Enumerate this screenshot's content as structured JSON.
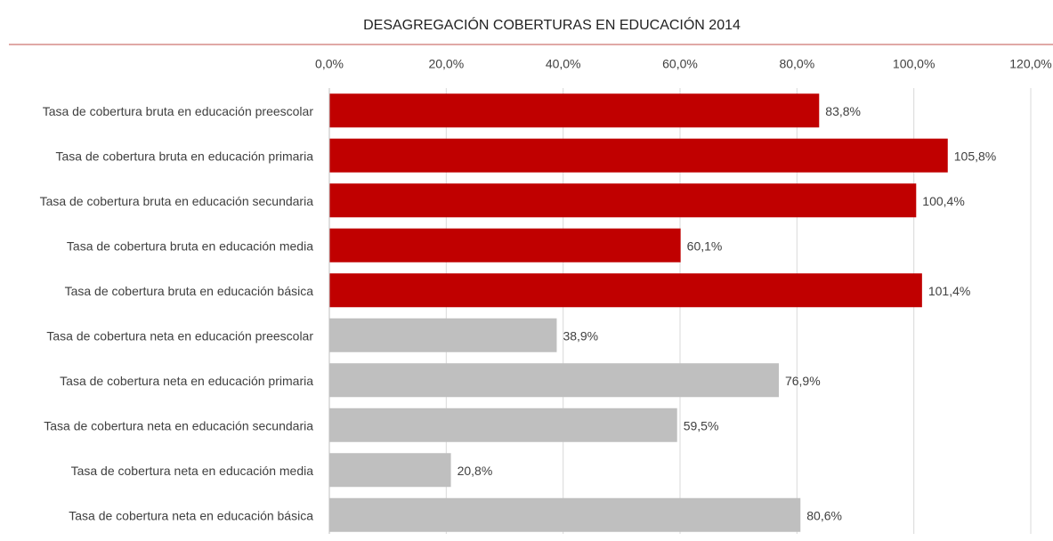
{
  "chart_data": {
    "type": "bar",
    "orientation": "horizontal",
    "title": "DESAGREGACIÓN COBERTURAS EN EDUCACIÓN 2014",
    "categories": [
      "Tasa de cobertura bruta en educación preescolar",
      "Tasa de cobertura bruta en educación primaria",
      "Tasa de cobertura bruta en educación secundaria",
      "Tasa de cobertura bruta en educación media",
      "Tasa de cobertura bruta en educación básica",
      "Tasa de cobertura neta en educación preescolar",
      "Tasa de cobertura neta en educación primaria",
      "Tasa de cobertura neta en educación secundaria",
      "Tasa de cobertura neta en educación media",
      "Tasa de cobertura neta en educación básica"
    ],
    "values": [
      83.8,
      105.8,
      100.4,
      60.1,
      101.4,
      38.9,
      76.9,
      59.5,
      20.8,
      80.6
    ],
    "value_labels": [
      "83,8%",
      "105,8%",
      "100,4%",
      "60,1%",
      "101,4%",
      "38,9%",
      "76,9%",
      "59,5%",
      "20,8%",
      "80,6%"
    ],
    "colors": [
      "#c00000",
      "#c00000",
      "#c00000",
      "#c00000",
      "#c00000",
      "#bfbfbf",
      "#bfbfbf",
      "#bfbfbf",
      "#bfbfbf",
      "#bfbfbf"
    ],
    "xlim": [
      0,
      120
    ],
    "xticks": [
      {
        "value": 0,
        "label": "0,0%"
      },
      {
        "value": 20,
        "label": "20,0%"
      },
      {
        "value": 40,
        "label": "40,0%"
      },
      {
        "value": 60,
        "label": "60,0%"
      },
      {
        "value": 80,
        "label": "80,0%"
      },
      {
        "value": 100,
        "label": "100,0%"
      },
      {
        "value": 120,
        "label": "120,0%"
      }
    ],
    "grid": true
  }
}
